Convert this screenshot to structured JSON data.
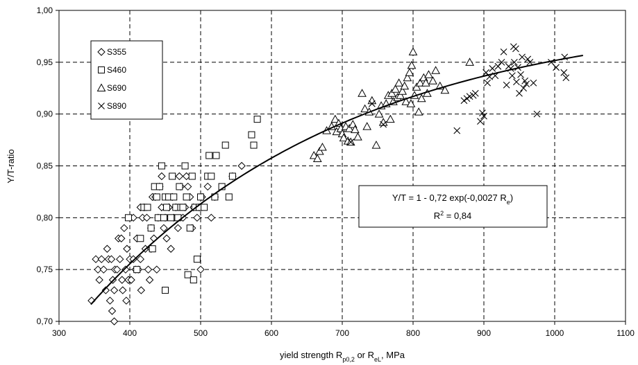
{
  "chart_data": {
    "type": "scatter",
    "xlabel": "yield strength R",
    "xlabel_sub1": "p0,2",
    "xlabel_mid": " or R",
    "xlabel_sub2": "eL",
    "xlabel_end": ", MPa",
    "ylabel": "Y/T-ratio",
    "xlim": [
      300,
      1100
    ],
    "ylim": [
      0.7,
      1.0
    ],
    "x_ticks": [
      300,
      400,
      500,
      600,
      700,
      800,
      900,
      1000,
      1100
    ],
    "y_ticks": [
      0.7,
      0.75,
      0.8,
      0.85,
      0.9,
      0.95,
      1.0
    ],
    "y_tick_labels": [
      "0,70",
      "0,75",
      "0,80",
      "0,85",
      "0,90",
      "0,95",
      "1,00"
    ],
    "grid": true,
    "legend_position": "top-left",
    "series": [
      {
        "name": "S355",
        "marker": "diamond",
        "points": [
          [
            346,
            0.72
          ],
          [
            352,
            0.76
          ],
          [
            355,
            0.75
          ],
          [
            357,
            0.74
          ],
          [
            360,
            0.76
          ],
          [
            363,
            0.75
          ],
          [
            366,
            0.73
          ],
          [
            368,
            0.77
          ],
          [
            370,
            0.76
          ],
          [
            372,
            0.72
          ],
          [
            374,
            0.76
          ],
          [
            375,
            0.71
          ],
          [
            376,
            0.74
          ],
          [
            378,
            0.7
          ],
          [
            378,
            0.73
          ],
          [
            379,
            0.75
          ],
          [
            382,
            0.75
          ],
          [
            384,
            0.78
          ],
          [
            386,
            0.76
          ],
          [
            388,
            0.78
          ],
          [
            389,
            0.74
          ],
          [
            390,
            0.73
          ],
          [
            392,
            0.79
          ],
          [
            394,
            0.75
          ],
          [
            395,
            0.72
          ],
          [
            396,
            0.77
          ],
          [
            398,
            0.74
          ],
          [
            400,
            0.76
          ],
          [
            402,
            0.74
          ],
          [
            405,
            0.76
          ],
          [
            408,
            0.75
          ],
          [
            410,
            0.78
          ],
          [
            412,
            0.75
          ],
          [
            415,
            0.76
          ],
          [
            416,
            0.73
          ],
          [
            418,
            0.8
          ],
          [
            420,
            0.81
          ],
          [
            422,
            0.77
          ],
          [
            424,
            0.8
          ],
          [
            426,
            0.75
          ],
          [
            428,
            0.74
          ],
          [
            430,
            0.79
          ],
          [
            432,
            0.82
          ],
          [
            434,
            0.78
          ],
          [
            436,
            0.82
          ],
          [
            438,
            0.75
          ],
          [
            440,
            0.8
          ],
          [
            442,
            0.83
          ],
          [
            445,
            0.81
          ],
          [
            448,
            0.79
          ],
          [
            450,
            0.8
          ],
          [
            452,
            0.78
          ],
          [
            455,
            0.81
          ],
          [
            458,
            0.77
          ],
          [
            460,
            0.82
          ],
          [
            462,
            0.8
          ],
          [
            465,
            0.81
          ],
          [
            468,
            0.79
          ],
          [
            470,
            0.84
          ],
          [
            472,
            0.83
          ],
          [
            475,
            0.8
          ],
          [
            478,
            0.81
          ],
          [
            480,
            0.84
          ],
          [
            482,
            0.83
          ],
          [
            485,
            0.82
          ],
          [
            488,
            0.79
          ],
          [
            490,
            0.81
          ],
          [
            495,
            0.8
          ],
          [
            498,
            0.81
          ],
          [
            500,
            0.75
          ],
          [
            502,
            0.82
          ],
          [
            510,
            0.83
          ],
          [
            515,
            0.8
          ],
          [
            520,
            0.82
          ],
          [
            545,
            0.84
          ],
          [
            558,
            0.85
          ],
          [
            405,
            0.8
          ],
          [
            415,
            0.81
          ],
          [
            430,
            0.77
          ],
          [
            445,
            0.84
          ]
        ]
      },
      {
        "name": "S460",
        "marker": "square",
        "points": [
          [
            398,
            0.8
          ],
          [
            410,
            0.75
          ],
          [
            415,
            0.78
          ],
          [
            420,
            0.81
          ],
          [
            425,
            0.81
          ],
          [
            430,
            0.79
          ],
          [
            432,
            0.77
          ],
          [
            435,
            0.83
          ],
          [
            438,
            0.82
          ],
          [
            440,
            0.8
          ],
          [
            442,
            0.83
          ],
          [
            445,
            0.85
          ],
          [
            448,
            0.8
          ],
          [
            450,
            0.73
          ],
          [
            450,
            0.82
          ],
          [
            452,
            0.81
          ],
          [
            455,
            0.82
          ],
          [
            458,
            0.8
          ],
          [
            460,
            0.84
          ],
          [
            462,
            0.82
          ],
          [
            465,
            0.81
          ],
          [
            468,
            0.8
          ],
          [
            470,
            0.83
          ],
          [
            472,
            0.81
          ],
          [
            475,
            0.81
          ],
          [
            478,
            0.85
          ],
          [
            480,
            0.82
          ],
          [
            482,
            0.745
          ],
          [
            485,
            0.79
          ],
          [
            488,
            0.84
          ],
          [
            490,
            0.74
          ],
          [
            492,
            0.81
          ],
          [
            495,
            0.76
          ],
          [
            498,
            0.81
          ],
          [
            500,
            0.82
          ],
          [
            505,
            0.81
          ],
          [
            510,
            0.84
          ],
          [
            512,
            0.86
          ],
          [
            515,
            0.84
          ],
          [
            520,
            0.82
          ],
          [
            522,
            0.86
          ],
          [
            530,
            0.83
          ],
          [
            535,
            0.87
          ],
          [
            540,
            0.82
          ],
          [
            545,
            0.84
          ],
          [
            572,
            0.88
          ],
          [
            575,
            0.87
          ],
          [
            580,
            0.895
          ]
        ]
      },
      {
        "name": "S690",
        "marker": "triangle",
        "points": [
          [
            660,
            0.86
          ],
          [
            665,
            0.857
          ],
          [
            668,
            0.864
          ],
          [
            672,
            0.868
          ],
          [
            678,
            0.884
          ],
          [
            685,
            0.888
          ],
          [
            690,
            0.895
          ],
          [
            692,
            0.883
          ],
          [
            695,
            0.891
          ],
          [
            698,
            0.886
          ],
          [
            700,
            0.881
          ],
          [
            702,
            0.877
          ],
          [
            705,
            0.888
          ],
          [
            708,
            0.874
          ],
          [
            710,
            0.886
          ],
          [
            712,
            0.873
          ],
          [
            715,
            0.89
          ],
          [
            718,
            0.885
          ],
          [
            722,
            0.878
          ],
          [
            728,
            0.92
          ],
          [
            732,
            0.905
          ],
          [
            735,
            0.888
          ],
          [
            738,
            0.902
          ],
          [
            742,
            0.913
          ],
          [
            748,
            0.87
          ],
          [
            752,
            0.9
          ],
          [
            755,
            0.908
          ],
          [
            758,
            0.892
          ],
          [
            762,
            0.91
          ],
          [
            765,
            0.918
          ],
          [
            768,
            0.895
          ],
          [
            770,
            0.92
          ],
          [
            772,
            0.912
          ],
          [
            775,
            0.924
          ],
          [
            778,
            0.916
          ],
          [
            780,
            0.93
          ],
          [
            782,
            0.918
          ],
          [
            785,
            0.922
          ],
          [
            788,
            0.927
          ],
          [
            790,
            0.912
          ],
          [
            792,
            0.935
          ],
          [
            795,
            0.94
          ],
          [
            797,
            0.91
          ],
          [
            798,
            0.947
          ],
          [
            800,
            0.96
          ],
          [
            802,
            0.918
          ],
          [
            805,
            0.926
          ],
          [
            808,
            0.902
          ],
          [
            810,
            0.93
          ],
          [
            812,
            0.915
          ],
          [
            815,
            0.935
          ],
          [
            818,
            0.93
          ],
          [
            820,
            0.92
          ],
          [
            822,
            0.938
          ],
          [
            828,
            0.932
          ],
          [
            832,
            0.942
          ],
          [
            838,
            0.927
          ],
          [
            845,
            0.923
          ],
          [
            880,
            0.95
          ]
        ]
      },
      {
        "name": "S890",
        "marker": "x",
        "points": [
          [
            712,
            0.873
          ],
          [
            742,
            0.91
          ],
          [
            758,
            0.89
          ],
          [
            862,
            0.884
          ],
          [
            872,
            0.913
          ],
          [
            876,
            0.915
          ],
          [
            880,
            0.917
          ],
          [
            885,
            0.918
          ],
          [
            888,
            0.92
          ],
          [
            895,
            0.893
          ],
          [
            898,
            0.901
          ],
          [
            900,
            0.898
          ],
          [
            903,
            0.94
          ],
          [
            905,
            0.93
          ],
          [
            908,
            0.936
          ],
          [
            912,
            0.944
          ],
          [
            916,
            0.937
          ],
          [
            920,
            0.946
          ],
          [
            925,
            0.95
          ],
          [
            928,
            0.96
          ],
          [
            932,
            0.928
          ],
          [
            935,
            0.946
          ],
          [
            938,
            0.944
          ],
          [
            940,
            0.937
          ],
          [
            942,
            0.965
          ],
          [
            943,
            0.95
          ],
          [
            945,
            0.963
          ],
          [
            946,
            0.931
          ],
          [
            948,
            0.945
          ],
          [
            950,
            0.92
          ],
          [
            952,
            0.938
          ],
          [
            954,
            0.955
          ],
          [
            956,
            0.925
          ],
          [
            958,
            0.932
          ],
          [
            960,
            0.929
          ],
          [
            962,
            0.953
          ],
          [
            965,
            0.95
          ],
          [
            970,
            0.93
          ],
          [
            975,
            0.9
          ],
          [
            995,
            0.95
          ],
          [
            1002,
            0.945
          ],
          [
            1013,
            0.94
          ],
          [
            1014,
            0.955
          ],
          [
            1016,
            0.935
          ]
        ]
      }
    ],
    "fit_curve": {
      "a": 0.72,
      "b": 0.0027,
      "x_from": 345,
      "x_to": 1040
    },
    "annotation": {
      "equation_prefix": "Y/T = 1 - 0,72 exp(-0,0027 R",
      "equation_sub": "e",
      "equation_suffix": ")",
      "r2_prefix": "R",
      "r2_sup": "2",
      "r2_suffix": " = 0,84"
    }
  }
}
